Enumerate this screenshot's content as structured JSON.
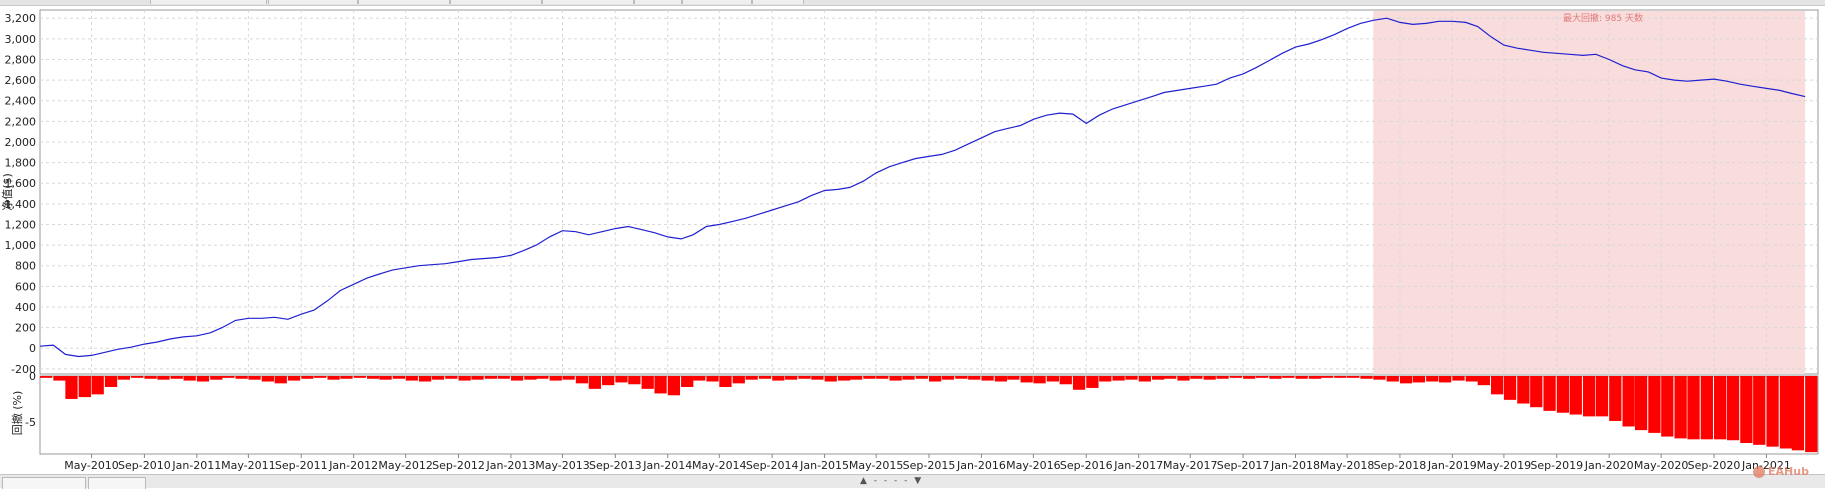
{
  "chart_data": [
    {
      "type": "line",
      "ylabel": "净值($)",
      "ylim": [
        -250,
        3280
      ],
      "yticks": [
        -200,
        0,
        200,
        400,
        600,
        800,
        1000,
        1200,
        1400,
        1600,
        1800,
        2000,
        2200,
        2400,
        2600,
        2800,
        3000,
        3200
      ],
      "ytick_labels": [
        "-200",
        "0",
        "200",
        "400",
        "600",
        "800",
        "1,000",
        "1,200",
        "1,400",
        "1,600",
        "1,800",
        "2,000",
        "2,200",
        "2,400",
        "2,600",
        "2,800",
        "3,000",
        "3,200"
      ],
      "grid": true,
      "line_color": "#2020d0",
      "highlight_color": "#f9dcdc",
      "highlight_range": [
        "2018-07",
        "2021-04"
      ],
      "annotation": "最大回撤: 985 天数",
      "series": [
        {
          "x": [
            "2010-01",
            "2010-02",
            "2010-03",
            "2010-04",
            "2010-05",
            "2010-06",
            "2010-07",
            "2010-08",
            "2010-09",
            "2010-10",
            "2010-11",
            "2010-12",
            "2011-01",
            "2011-02",
            "2011-03",
            "2011-04",
            "2011-05",
            "2011-06",
            "2011-07",
            "2011-08",
            "2011-09",
            "2011-10",
            "2011-11",
            "2011-12",
            "2012-01",
            "2012-02",
            "2012-03",
            "2012-04",
            "2012-05",
            "2012-06",
            "2012-07",
            "2012-08",
            "2012-09",
            "2012-10",
            "2012-11",
            "2012-12",
            "2013-01",
            "2013-02",
            "2013-03",
            "2013-04",
            "2013-05",
            "2013-06",
            "2013-07",
            "2013-08",
            "2013-09",
            "2013-10",
            "2013-11",
            "2013-12",
            "2014-01",
            "2014-02",
            "2014-03",
            "2014-04",
            "2014-05",
            "2014-06",
            "2014-07",
            "2014-08",
            "2014-09",
            "2014-10",
            "2014-11",
            "2014-12",
            "2015-01",
            "2015-02",
            "2015-03",
            "2015-04",
            "2015-05",
            "2015-06",
            "2015-07",
            "2015-08",
            "2015-09",
            "2015-10",
            "2015-11",
            "2015-12",
            "2016-01",
            "2016-02",
            "2016-03",
            "2016-04",
            "2016-05",
            "2016-06",
            "2016-07",
            "2016-08",
            "2016-09",
            "2016-10",
            "2016-11",
            "2016-12",
            "2017-01",
            "2017-02",
            "2017-03",
            "2017-04",
            "2017-05",
            "2017-06",
            "2017-07",
            "2017-08",
            "2017-09",
            "2017-10",
            "2017-11",
            "2017-12",
            "2018-01",
            "2018-02",
            "2018-03",
            "2018-04",
            "2018-05",
            "2018-06",
            "2018-07",
            "2018-08",
            "2018-09",
            "2018-10",
            "2018-11",
            "2018-12",
            "2019-01",
            "2019-02",
            "2019-03",
            "2019-04",
            "2019-05",
            "2019-06",
            "2019-07",
            "2019-08",
            "2019-09",
            "2019-10",
            "2019-11",
            "2019-12",
            "2020-01",
            "2020-02",
            "2020-03",
            "2020-04",
            "2020-05",
            "2020-06",
            "2020-07",
            "2020-08",
            "2020-09",
            "2020-10",
            "2020-11",
            "2020-12",
            "2021-01",
            "2021-02",
            "2021-03",
            "2021-04"
          ],
          "y": [
            20,
            30,
            -60,
            -80,
            -70,
            -40,
            -10,
            10,
            40,
            60,
            90,
            110,
            120,
            150,
            200,
            270,
            290,
            290,
            300,
            280,
            330,
            370,
            460,
            560,
            620,
            680,
            720,
            760,
            780,
            800,
            810,
            820,
            840,
            860,
            870,
            880,
            900,
            950,
            1000,
            1080,
            1140,
            1130,
            1100,
            1130,
            1160,
            1180,
            1150,
            1120,
            1080,
            1060,
            1100,
            1180,
            1200,
            1230,
            1260,
            1300,
            1340,
            1380,
            1420,
            1480,
            1530,
            1540,
            1560,
            1620,
            1700,
            1760,
            1800,
            1840,
            1860,
            1880,
            1920,
            1980,
            2040,
            2100,
            2130,
            2160,
            2220,
            2260,
            2280,
            2270,
            2180,
            2260,
            2320,
            2360,
            2400,
            2440,
            2480,
            2500,
            2520,
            2540,
            2560,
            2620,
            2660,
            2720,
            2790,
            2860,
            2920,
            2950,
            2990,
            3040,
            3100,
            3150,
            3180,
            3200,
            3160,
            3140,
            3150,
            3170,
            3170,
            3160,
            3120,
            3020,
            2940,
            2910,
            2890,
            2870,
            2860,
            2850,
            2840,
            2850,
            2800,
            2740,
            2700,
            2680,
            2620,
            2600,
            2590,
            2600,
            2610,
            2590,
            2560,
            2540,
            2520,
            2500,
            2470,
            2440
          ]
        }
      ]
    },
    {
      "type": "bar",
      "ylabel": "回撤 (%)",
      "ylim": [
        -8.5,
        0
      ],
      "yticks": [
        0,
        -5
      ],
      "ytick_labels": [
        "0",
        "-5"
      ],
      "bar_color": "#ff0000",
      "series": [
        {
          "x": [
            "2010-01",
            "2010-02",
            "2010-03",
            "2010-04",
            "2010-05",
            "2010-06",
            "2010-07",
            "2010-08",
            "2010-09",
            "2010-10",
            "2010-11",
            "2010-12",
            "2011-01",
            "2011-02",
            "2011-03",
            "2011-04",
            "2011-05",
            "2011-06",
            "2011-07",
            "2011-08",
            "2011-09",
            "2011-10",
            "2011-11",
            "2011-12",
            "2012-01",
            "2012-02",
            "2012-03",
            "2012-04",
            "2012-05",
            "2012-06",
            "2012-07",
            "2012-08",
            "2012-09",
            "2012-10",
            "2012-11",
            "2012-12",
            "2013-01",
            "2013-02",
            "2013-03",
            "2013-04",
            "2013-05",
            "2013-06",
            "2013-07",
            "2013-08",
            "2013-09",
            "2013-10",
            "2013-11",
            "2013-12",
            "2014-01",
            "2014-02",
            "2014-03",
            "2014-04",
            "2014-05",
            "2014-06",
            "2014-07",
            "2014-08",
            "2014-09",
            "2014-10",
            "2014-11",
            "2014-12",
            "2015-01",
            "2015-02",
            "2015-03",
            "2015-04",
            "2015-05",
            "2015-06",
            "2015-07",
            "2015-08",
            "2015-09",
            "2015-10",
            "2015-11",
            "2015-12",
            "2016-01",
            "2016-02",
            "2016-03",
            "2016-04",
            "2016-05",
            "2016-06",
            "2016-07",
            "2016-08",
            "2016-09",
            "2016-10",
            "2016-11",
            "2016-12",
            "2017-01",
            "2017-02",
            "2017-03",
            "2017-04",
            "2017-05",
            "2017-06",
            "2017-07",
            "2017-08",
            "2017-09",
            "2017-10",
            "2017-11",
            "2017-12",
            "2018-01",
            "2018-02",
            "2018-03",
            "2018-04",
            "2018-05",
            "2018-06",
            "2018-07",
            "2018-08",
            "2018-09",
            "2018-10",
            "2018-11",
            "2018-12",
            "2019-01",
            "2019-02",
            "2019-03",
            "2019-04",
            "2019-05",
            "2019-06",
            "2019-07",
            "2019-08",
            "2019-09",
            "2019-10",
            "2019-11",
            "2019-12",
            "2020-01",
            "2020-02",
            "2020-03",
            "2020-04",
            "2020-05",
            "2020-06",
            "2020-07",
            "2020-08",
            "2020-09",
            "2020-10",
            "2020-11",
            "2020-12",
            "2021-01",
            "2021-02",
            "2021-03",
            "2021-04"
          ],
          "y": [
            -0.2,
            -0.5,
            -2.5,
            -2.3,
            -2.0,
            -1.2,
            -0.4,
            -0.2,
            -0.3,
            -0.4,
            -0.3,
            -0.5,
            -0.6,
            -0.4,
            -0.2,
            -0.3,
            -0.4,
            -0.6,
            -0.8,
            -0.5,
            -0.3,
            -0.2,
            -0.4,
            -0.3,
            -0.2,
            -0.3,
            -0.4,
            -0.3,
            -0.5,
            -0.6,
            -0.4,
            -0.3,
            -0.5,
            -0.4,
            -0.3,
            -0.3,
            -0.5,
            -0.4,
            -0.3,
            -0.5,
            -0.4,
            -0.8,
            -1.4,
            -1.0,
            -0.7,
            -0.9,
            -1.4,
            -1.9,
            -2.1,
            -1.2,
            -0.5,
            -0.6,
            -1.2,
            -0.8,
            -0.4,
            -0.3,
            -0.5,
            -0.4,
            -0.3,
            -0.4,
            -0.6,
            -0.5,
            -0.4,
            -0.3,
            -0.3,
            -0.5,
            -0.4,
            -0.3,
            -0.6,
            -0.4,
            -0.3,
            -0.4,
            -0.5,
            -0.6,
            -0.4,
            -0.7,
            -0.8,
            -0.6,
            -0.9,
            -1.5,
            -1.3,
            -0.6,
            -0.5,
            -0.4,
            -0.6,
            -0.4,
            -0.3,
            -0.5,
            -0.3,
            -0.4,
            -0.3,
            -0.2,
            -0.3,
            -0.2,
            -0.3,
            -0.2,
            -0.3,
            -0.3,
            -0.2,
            -0.2,
            -0.2,
            -0.3,
            -0.4,
            -0.6,
            -0.8,
            -0.7,
            -0.6,
            -0.7,
            -0.5,
            -0.6,
            -1.0,
            -2.0,
            -2.6,
            -3.0,
            -3.4,
            -3.8,
            -4.0,
            -4.2,
            -4.4,
            -4.4,
            -4.9,
            -5.5,
            -5.9,
            -6.2,
            -6.6,
            -6.8,
            -6.9,
            -6.9,
            -6.9,
            -7.0,
            -7.3,
            -7.5,
            -7.7,
            -7.9,
            -8.1,
            -8.3
          ]
        }
      ]
    },
    {
      "type": "axis",
      "xtick_labels": [
        "May-2010",
        "Sep-2010",
        "Jan-2011",
        "May-2011",
        "Sep-2011",
        "Jan-2012",
        "May-2012",
        "Sep-2012",
        "Jan-2013",
        "May-2013",
        "Sep-2013",
        "Jan-2014",
        "May-2014",
        "Sep-2014",
        "Jan-2015",
        "May-2015",
        "Sep-2015",
        "Jan-2016",
        "May-2016",
        "Sep-2016",
        "Jan-2017",
        "May-2017",
        "Sep-2017",
        "Jan-2018",
        "May-2018",
        "Sep-2018",
        "Jan-2019",
        "May-2019",
        "Sep-2019",
        "Jan-2020",
        "May-2020",
        "Sep-2020",
        "Jan-2021"
      ],
      "xtick_dates": [
        "2010-05",
        "2010-09",
        "2011-01",
        "2011-05",
        "2011-09",
        "2012-01",
        "2012-05",
        "2012-09",
        "2013-01",
        "2013-05",
        "2013-09",
        "2014-01",
        "2014-05",
        "2014-09",
        "2015-01",
        "2015-05",
        "2015-09",
        "2016-01",
        "2016-05",
        "2016-09",
        "2017-01",
        "2017-05",
        "2017-09",
        "2018-01",
        "2018-05",
        "2018-09",
        "2019-01",
        "2019-05",
        "2019-09",
        "2020-01",
        "2020-05",
        "2020-09",
        "2021-01"
      ]
    }
  ],
  "ui": {
    "splitter_label": "▲ - - - - ▼",
    "watermark": "EAHub"
  }
}
